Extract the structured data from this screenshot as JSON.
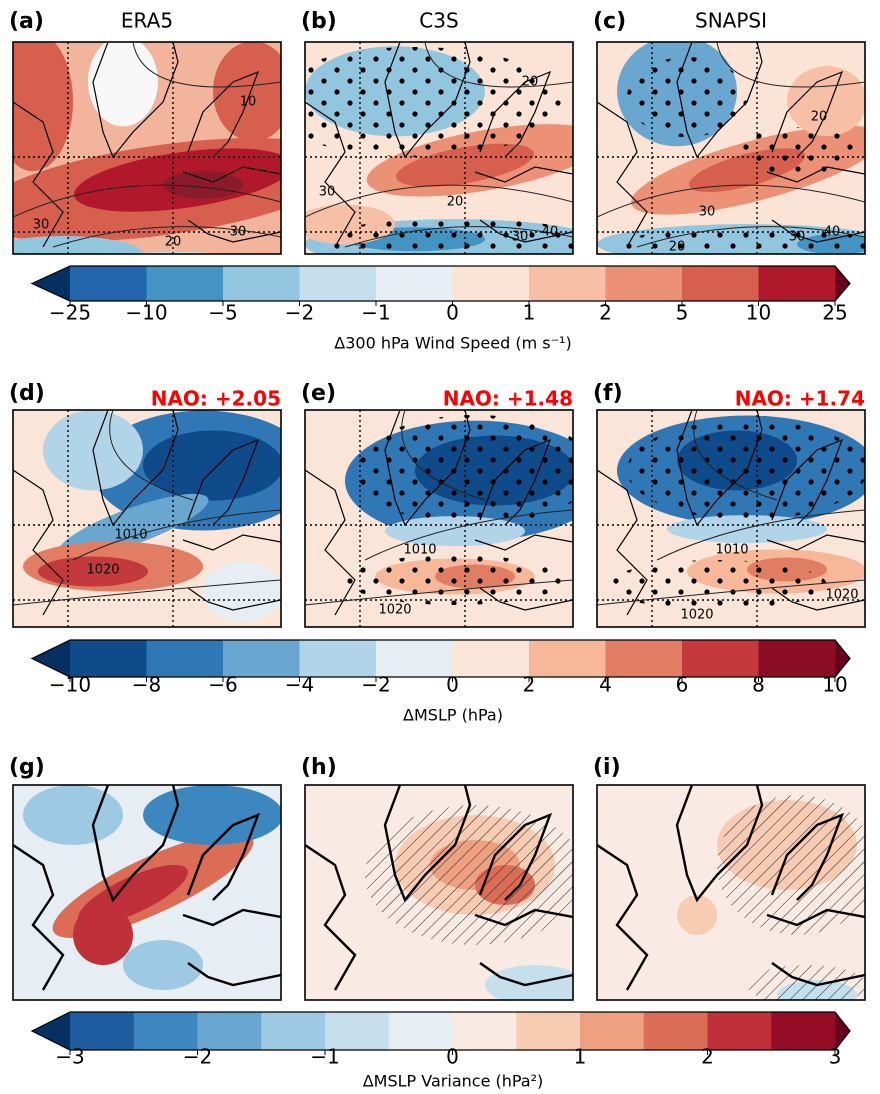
{
  "rows": [
    {
      "panels": [
        {
          "label": "(a)",
          "title": "ERA5",
          "contour_labels": [
            "10",
            "30",
            "20",
            "30"
          ]
        },
        {
          "label": "(b)",
          "title": "C3S",
          "contour_labels": [
            "20",
            "30",
            "20",
            "30",
            "40"
          ]
        },
        {
          "label": "(c)",
          "title": "SNAPSI",
          "contour_labels": [
            "20",
            "30",
            "20",
            "30",
            "40"
          ]
        }
      ],
      "colorbar": {
        "ticks": [
          "−25",
          "−10",
          "−5",
          "−2",
          "−1",
          "0",
          "1",
          "2",
          "5",
          "10",
          "25"
        ],
        "colors": [
          "#2166ac",
          "#4393c3",
          "#92c5de",
          "#c6dfed",
          "#e8eff4",
          "#fbe4d6",
          "#f7c0a6",
          "#ec9175",
          "#d6604d",
          "#b2182b"
        ],
        "extend_colors": [
          "#053061",
          "#67001f"
        ],
        "label": "Δ300 hPa Wind Speed (m s⁻¹)"
      }
    },
    {
      "panels": [
        {
          "label": "(d)",
          "nao": "NAO: +2.05",
          "contour_labels": [
            "1010",
            "1020"
          ]
        },
        {
          "label": "(e)",
          "nao": "NAO: +1.48",
          "contour_labels": [
            "1010",
            "1020"
          ]
        },
        {
          "label": "(f)",
          "nao": "NAO: +1.74",
          "contour_labels": [
            "1010",
            "1020",
            "1020"
          ]
        }
      ],
      "colorbar": {
        "ticks": [
          "−10",
          "−8",
          "−6",
          "−4",
          "−2",
          "0",
          "2",
          "4",
          "6",
          "8",
          "10"
        ],
        "colors": [
          "#0f4a8a",
          "#2f77b5",
          "#6aa7d0",
          "#b2d4e8",
          "#e6eef4",
          "#fbe5d8",
          "#f6b899",
          "#e17d63",
          "#c4393b",
          "#8b0d24"
        ],
        "extend_colors": [
          "#053061",
          "#67001f"
        ],
        "label": "ΔMSLP (hPa)"
      }
    },
    {
      "panels": [
        {
          "label": "(g)"
        },
        {
          "label": "(h)"
        },
        {
          "label": "(i)"
        }
      ],
      "colorbar": {
        "ticks": [
          "−3",
          "−2",
          "−1",
          "0",
          "1",
          "2",
          "3"
        ],
        "colors": [
          "#1d5d9f",
          "#3c87bf",
          "#6aa7d0",
          "#9ec9e2",
          "#c6dfed",
          "#e6eef4",
          "#f9ebe3",
          "#f8cbb3",
          "#efa080",
          "#db6d57",
          "#c0303a",
          "#950c26"
        ],
        "extend_colors": [
          "#053061",
          "#67001f"
        ],
        "label": "ΔMSLP Variance (hPa²)"
      }
    }
  ]
}
